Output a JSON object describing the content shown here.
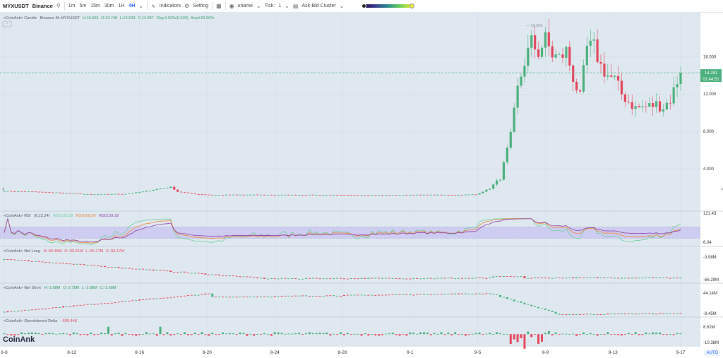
{
  "toolbar": {
    "symbol": "MYXUSDT",
    "exchange": "Binance",
    "intervals": [
      "1m",
      "5m",
      "15m",
      "30m",
      "1H",
      "4H"
    ],
    "active_interval": "4H",
    "indicators_label": "Indicators",
    "setting_label": "Setting",
    "uname_label": "uname",
    "tick_label": "Tick:",
    "tick_value": "1",
    "cluster_label": "Ask-Bid Cluster",
    "icons": [
      "search-icon",
      "indicators-icon",
      "gear-icon",
      "layout-icon",
      "eye-icon",
      "chevron-down-icon"
    ]
  },
  "legends": {
    "candle": {
      "title": "<CoinAnk> Candle",
      "desc": "Binance 4h MYXUSDT",
      "h": "H:16.665",
      "o": "O:13.746",
      "l": "L:13.503",
      "c": "C:14.287",
      "chg": "Chg:3.92%(0.539)",
      "ampl": "Ampl:23.00%"
    },
    "rsi": {
      "title": "<CoinAnk> RSI",
      "params": "(6,12,24)",
      "rsi1": "RSI1:83.00",
      "rsi2": "RSI2:68.50",
      "rsi3": "RSI3:59.22"
    },
    "netlong": {
      "title": "<CoinAnk> Net Long",
      "h": "H:-55.45M",
      "o": "O:-55.51M",
      "l": "L:-56.17M",
      "c": "C:-56.17M"
    },
    "netshort": {
      "title": "<CoinAnk> Net Short",
      "h": "H:-2.68M",
      "o": "O:-2.78M",
      "l": "L:-2.88M",
      "c": "C:-2.68M"
    },
    "oid": {
      "title": "<CoinAnk> OpenInterest Delta",
      "value": "-599.44K"
    }
  },
  "price_axis": [
    "16.000",
    "12.000",
    "8.000",
    "4.000"
  ],
  "last_price": {
    "price": "14.281",
    "countdown": "01:44:51"
  },
  "peak_label": "19.650",
  "rsi_axis": {
    "top": "121.43",
    "bottom": "6.04"
  },
  "netlong_axis": {
    "top": "-3.98M",
    "bottom": "-66.29M"
  },
  "netshort_axis": {
    "top": "44.14M",
    "bottom": "-9.45M"
  },
  "oid_axis": {
    "top": "8.52M",
    "bottom": "-10.38M"
  },
  "watermark": "CoinAnk",
  "auto_label": "AUTO",
  "colors": {
    "up": "#4caf7d",
    "down": "#e0475c",
    "bg": "#dfe8ef",
    "rsi1": "#6fcf9f",
    "rsi2": "#e9883e",
    "rsi3": "#8b3fa6",
    "band": "#c8c3f0"
  },
  "chart_data": {
    "type": "candlestick",
    "x_ticks": [
      "8-8",
      "8-12",
      "8-16",
      "8-20",
      "8-24",
      "8-28",
      "9-1",
      "9-5",
      "9-9",
      "9-13",
      "9-17"
    ],
    "price_keypoints": [
      [
        0,
        1.6
      ],
      [
        8,
        1.55
      ],
      [
        15,
        1.45
      ],
      [
        25,
        1.25
      ],
      [
        35,
        1.32
      ],
      [
        40,
        1.55
      ],
      [
        45,
        1.9
      ],
      [
        48,
        2.05
      ],
      [
        50,
        1.55
      ],
      [
        55,
        1.3
      ],
      [
        60,
        1.2
      ],
      [
        70,
        1.22
      ],
      [
        80,
        1.2
      ],
      [
        90,
        1.2
      ],
      [
        100,
        1.18
      ],
      [
        110,
        1.18
      ],
      [
        120,
        1.2
      ],
      [
        130,
        1.2
      ],
      [
        136,
        1.25
      ],
      [
        140,
        1.9
      ],
      [
        143,
        3.0
      ],
      [
        146,
        7.5
      ],
      [
        148,
        12.5
      ],
      [
        150,
        15.5
      ],
      [
        152,
        17.5
      ],
      [
        154,
        16.5
      ],
      [
        156,
        17.8
      ],
      [
        158,
        16.2
      ],
      [
        160,
        15.8
      ],
      [
        162,
        16.6
      ],
      [
        164,
        13.8
      ],
      [
        166,
        11.6
      ],
      [
        168,
        16.9
      ],
      [
        170,
        17.0
      ],
      [
        172,
        15.0
      ],
      [
        174,
        14.0
      ],
      [
        176,
        13.5
      ],
      [
        178,
        12.0
      ],
      [
        180,
        11.2
      ],
      [
        182,
        10.5
      ],
      [
        184,
        10.6
      ],
      [
        186,
        10.7
      ],
      [
        188,
        10.9
      ],
      [
        190,
        10.6
      ],
      [
        192,
        11.4
      ],
      [
        194,
        13.4
      ],
      [
        195,
        14.28
      ]
    ],
    "candle_count": 196,
    "price_range": [
      0,
      19.65
    ],
    "rsi_range": [
      6.04,
      121.43
    ],
    "rsi_band": [
      30,
      70
    ],
    "last_close": 14.281,
    "series": [
      {
        "name": "RSI1",
        "last": 83.0
      },
      {
        "name": "RSI2",
        "last": 68.5
      },
      {
        "name": "RSI3",
        "last": 59.22
      }
    ],
    "netlong_range": [
      -66.29,
      -3.98
    ],
    "netshort_range": [
      -9.45,
      44.14
    ],
    "oid_range": [
      -10.38,
      8.52
    ]
  }
}
